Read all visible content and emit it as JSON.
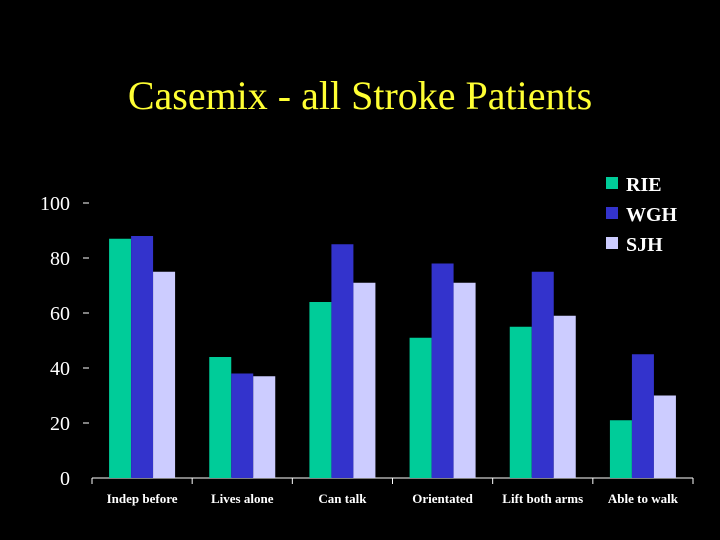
{
  "chart_data": {
    "type": "bar",
    "title": "Casemix - all Stroke Patients",
    "xlabel": "",
    "ylabel": "",
    "categories": [
      "Indep before",
      "Lives alone",
      "Can talk",
      "Orientated",
      "Lift both arms",
      "Able to walk"
    ],
    "series": [
      {
        "name": "RIE",
        "color": "#00cc99",
        "values": [
          87,
          44,
          64,
          51,
          55,
          21
        ]
      },
      {
        "name": "WGH",
        "color": "#3333cc",
        "values": [
          88,
          38,
          85,
          78,
          75,
          45
        ]
      },
      {
        "name": "SJH",
        "color": "#ccccff",
        "values": [
          75,
          37,
          71,
          71,
          59,
          30
        ]
      }
    ],
    "yticks": [
      "0",
      "20",
      "40",
      "60",
      "80",
      "100"
    ],
    "ylim": [
      0,
      100
    ],
    "legend": "top-right",
    "grid": false
  }
}
